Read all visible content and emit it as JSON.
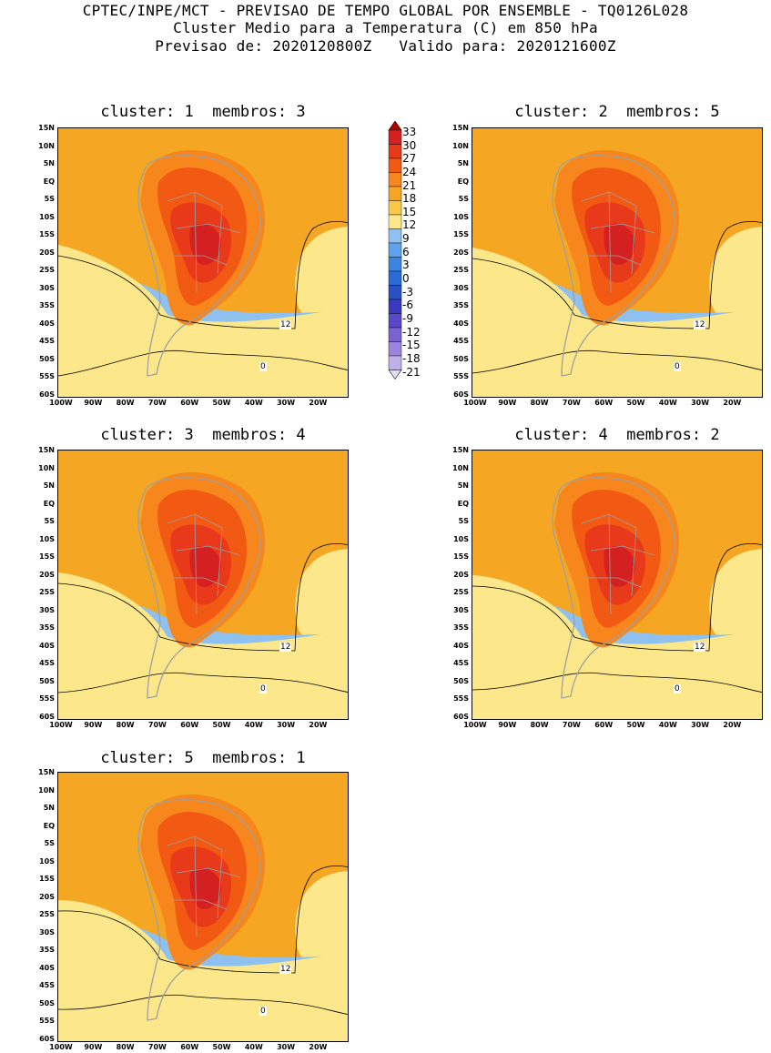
{
  "header": {
    "line1": "CPTEC/INPE/MCT - PREVISAO DE TEMPO GLOBAL POR ENSEMBLE - TQ0126L028",
    "line2": "Cluster Medio para a Temperatura (C) em 850 hPa",
    "line3": "Previsao de: 2020120800Z   Valido para: 2020121600Z"
  },
  "panels": [
    {
      "title": "cluster: 1  membros: 3"
    },
    {
      "title": "cluster: 2  membros: 5"
    },
    {
      "title": "cluster: 3  membros: 4"
    },
    {
      "title": "cluster: 4  membros: 2"
    },
    {
      "title": "cluster: 5  membros: 1"
    }
  ],
  "lat_labels": [
    "15N",
    "10N",
    "5N",
    "EQ",
    "5S",
    "10S",
    "15S",
    "20S",
    "25S",
    "30S",
    "35S",
    "40S",
    "45S",
    "50S",
    "55S",
    "60S"
  ],
  "lon_labels": [
    "100W",
    "90W",
    "80W",
    "70W",
    "60W",
    "50W",
    "40W",
    "30W",
    "20W"
  ],
  "contour_labels": {
    "warm": "12",
    "cold": "0"
  },
  "colorbar": {
    "labels": [
      "33",
      "30",
      "27",
      "24",
      "21",
      "18",
      "15",
      "12",
      "9",
      "6",
      "3",
      "0",
      "-3",
      "-6",
      "-9",
      "-12",
      "-15",
      "-18",
      "-21"
    ],
    "colors": [
      "#b30000",
      "#d42020",
      "#e83a1a",
      "#f25a14",
      "#f7861c",
      "#f5a623",
      "#f8c848",
      "#fce88a",
      "#8ec0f0",
      "#5fa2ec",
      "#3d84e0",
      "#2a6ad6",
      "#2a50c8",
      "#3a3ac0",
      "#5a48c8",
      "#7a62d0",
      "#9c84dc",
      "#c0b0ea",
      "#e4dcf6"
    ]
  },
  "colors": {
    "warm1": "#f5a623",
    "warm2": "#f7861c",
    "warm3": "#f25a14",
    "hot": "#e83a1a",
    "hotter": "#d42020",
    "pale": "#fce88a",
    "cool1": "#8ec0f0",
    "cool2": "#5fa2ec",
    "cool3": "#3d84e0",
    "cold1": "#2a6ad6",
    "cold2": "#2a50c8",
    "cold3": "#3a3ac0",
    "land": "#a0a0a0"
  }
}
